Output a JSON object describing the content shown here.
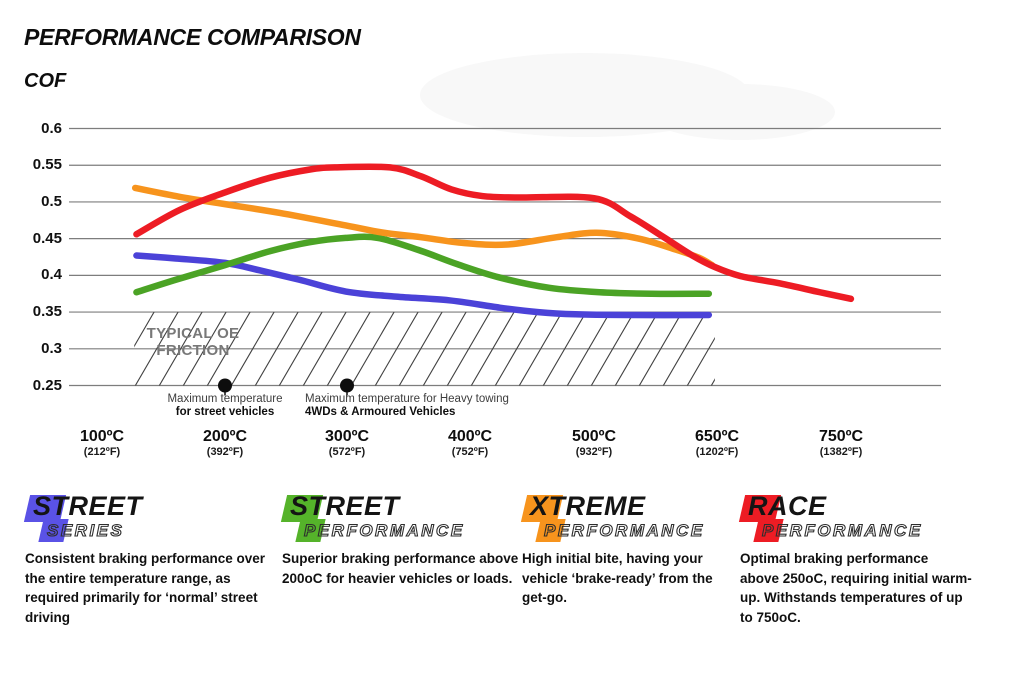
{
  "header": {
    "title": "PERFORMANCE COMPARISON",
    "axis_label": "COF"
  },
  "chart_data": {
    "type": "line",
    "title": "PERFORMANCE COMPARISON",
    "ylabel": "COF",
    "xlabel": "",
    "grid": "horizontal",
    "ylim": [
      0.25,
      0.6
    ],
    "y_ticks": [
      "0.6",
      "0.55",
      "0.5",
      "0.45",
      "0.4",
      "0.35",
      "0.3",
      "0.25"
    ],
    "y_tick_values": [
      0.6,
      0.55,
      0.5,
      0.45,
      0.4,
      0.35,
      0.3,
      0.25
    ],
    "x_ticks": [
      {
        "temp": 100,
        "label": "100ºC",
        "sub": "(212ºF)"
      },
      {
        "temp": 200,
        "label": "200ºC",
        "sub": "(392ºF)"
      },
      {
        "temp": 300,
        "label": "300ºC",
        "sub": "(572ºF)"
      },
      {
        "temp": 400,
        "label": "400ºC",
        "sub": "(752ºF)"
      },
      {
        "temp": 500,
        "label": "500ºC",
        "sub": "(932ºF)"
      },
      {
        "temp": 650,
        "label": "650ºC",
        "sub": "(1202ºF)"
      },
      {
        "temp": 750,
        "label": "750ºC",
        "sub": "(1382ºF)"
      }
    ],
    "series": [
      {
        "name": "Street Series",
        "color": "#4b42d8",
        "points": [
          [
            128,
            0.427
          ],
          [
            160,
            0.423
          ],
          [
            200,
            0.417
          ],
          [
            228,
            0.407
          ],
          [
            261,
            0.394
          ],
          [
            299,
            0.378
          ],
          [
            340,
            0.371
          ],
          [
            383,
            0.366
          ],
          [
            424,
            0.356
          ],
          [
            455,
            0.35
          ],
          [
            485,
            0.347
          ],
          [
            540,
            0.346
          ],
          [
            640,
            0.346
          ]
        ]
      },
      {
        "name": "Street Performance",
        "color": "#4ba325",
        "points": [
          [
            128,
            0.377
          ],
          [
            160,
            0.394
          ],
          [
            200,
            0.414
          ],
          [
            237,
            0.433
          ],
          [
            269,
            0.445
          ],
          [
            299,
            0.451
          ],
          [
            325,
            0.451
          ],
          [
            359,
            0.434
          ],
          [
            390,
            0.415
          ],
          [
            424,
            0.397
          ],
          [
            464,
            0.383
          ],
          [
            507,
            0.377
          ],
          [
            570,
            0.375
          ],
          [
            640,
            0.375
          ]
        ]
      },
      {
        "name": "Xtreme Performance",
        "color": "#f7941d",
        "points": [
          [
            127,
            0.519
          ],
          [
            163,
            0.507
          ],
          [
            200,
            0.497
          ],
          [
            245,
            0.485
          ],
          [
            299,
            0.468
          ],
          [
            330,
            0.458
          ],
          [
            360,
            0.452
          ],
          [
            395,
            0.444
          ],
          [
            430,
            0.442
          ],
          [
            470,
            0.452
          ],
          [
            503,
            0.458
          ],
          [
            555,
            0.45
          ],
          [
            600,
            0.435
          ],
          [
            628,
            0.424
          ],
          [
            644,
            0.414
          ]
        ]
      },
      {
        "name": "Race Performance",
        "color": "#ed1c24",
        "points": [
          [
            128,
            0.456
          ],
          [
            163,
            0.489
          ],
          [
            200,
            0.513
          ],
          [
            237,
            0.533
          ],
          [
            269,
            0.544
          ],
          [
            290,
            0.547
          ],
          [
            335,
            0.547
          ],
          [
            360,
            0.535
          ],
          [
            385,
            0.517
          ],
          [
            410,
            0.508
          ],
          [
            440,
            0.506
          ],
          [
            500,
            0.505
          ],
          [
            545,
            0.48
          ],
          [
            585,
            0.452
          ],
          [
            620,
            0.427
          ],
          [
            648,
            0.411
          ],
          [
            669,
            0.399
          ],
          [
            701,
            0.389
          ],
          [
            733,
            0.377
          ],
          [
            758,
            0.368
          ]
        ]
      }
    ],
    "oe_band": {
      "label_lines": [
        "TYPICAL OE",
        "FRICTION"
      ],
      "cof_from": 0.25,
      "cof_to": 0.35,
      "temp_from": 127,
      "temp_to": 645
    },
    "annotations": [
      {
        "temp": 200,
        "cof": 0.25,
        "lines": [
          "Maximum temperature",
          "for street vehicles"
        ],
        "align": "center"
      },
      {
        "temp": 300,
        "cof": 0.25,
        "lines": [
          "Maximum temperature for Heavy towing",
          "4WDs & Armoured Vehicles"
        ],
        "align": "left"
      }
    ]
  },
  "legend": {
    "items": [
      {
        "word1": "STREET",
        "word2": "SERIES",
        "color": "#5a52e6",
        "desc_lines": [
          "Consistent braking performance over",
          "the entire temperature range, as",
          "required primarily for ‘normal’ street",
          "driving"
        ]
      },
      {
        "word1": "STREET",
        "word2": "PERFORMANCE",
        "color": "#55b32a",
        "desc_lines": [
          "Superior braking performance above",
          "200oC for heavier vehicles or loads."
        ]
      },
      {
        "word1": "XTREME",
        "word2": "PERFORMANCE",
        "color": "#f7941d",
        "desc_lines": [
          "High initial bite, having your",
          "vehicle ‘brake-ready’ from the",
          "get-go."
        ]
      },
      {
        "word1": "RACE",
        "word2": "PERFORMANCE",
        "color": "#ed1c24",
        "desc_lines": [
          "Optimal braking performance",
          "above 250oC, requiring initial warm-",
          "up. Withstands temperatures of up",
          "to 750oC."
        ]
      }
    ]
  },
  "style": {
    "gridline_color": "#7d7d7d",
    "hatch_color": "#404040",
    "dot_color": "#0d0d0d",
    "watermark_color": "#f8f8f8"
  }
}
